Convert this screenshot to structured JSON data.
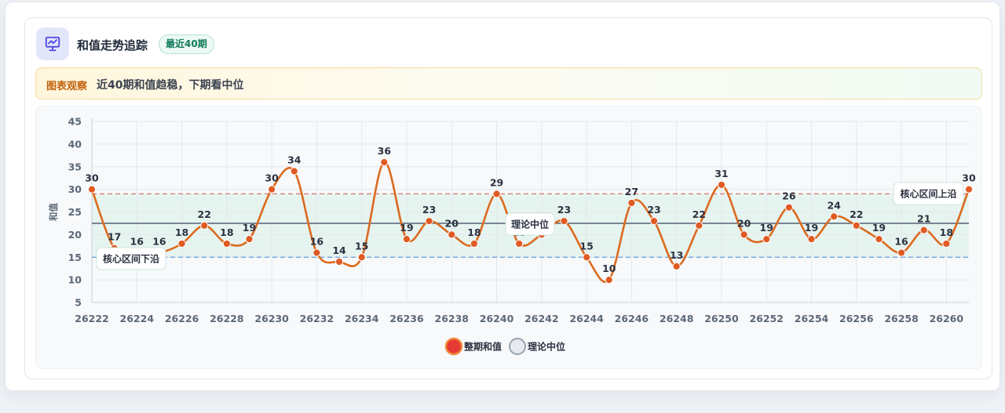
{
  "header": {
    "title": "和值走势追踪",
    "badge": "最近40期",
    "icon": "presentation-chart-icon"
  },
  "observation": {
    "tag": "图表观察",
    "text": "近40期和值趋稳，下期看中位"
  },
  "colors": {
    "line": "#dc6a1f",
    "point": "#e05a24",
    "median": "#5d6b7e",
    "upper": "#e0504f",
    "lower": "#4a86d4",
    "band": "#e6f4ef",
    "accent": "#4f46e5"
  },
  "chart_data": {
    "type": "line",
    "ylabel": "和值",
    "ylim": [
      5,
      45
    ],
    "yticks": [
      5,
      10,
      15,
      20,
      25,
      30,
      35,
      40,
      45
    ],
    "grid": true,
    "legend_position": "bottom-center",
    "x": [
      26222,
      26223,
      26224,
      26225,
      26226,
      26227,
      26228,
      26229,
      26230,
      26231,
      26232,
      26233,
      26234,
      26235,
      26236,
      26237,
      26238,
      26239,
      26240,
      26241,
      26242,
      26243,
      26244,
      26245,
      26246,
      26247,
      26248,
      26249,
      26250,
      26251,
      26252,
      26253,
      26254,
      26255,
      26256,
      26257,
      26258,
      26259,
      26260,
      26261
    ],
    "xtick_labels": [
      "26222",
      "26224",
      "26226",
      "26228",
      "26230",
      "26232",
      "26234",
      "26236",
      "26238",
      "26240",
      "26242",
      "26244",
      "26246",
      "26248",
      "26250",
      "26252",
      "26254",
      "26256",
      "26258",
      "26260"
    ],
    "series": [
      {
        "name": "整期和值",
        "values": [
          30,
          17,
          16,
          16,
          18,
          22,
          18,
          19,
          30,
          34,
          16,
          14,
          15,
          36,
          19,
          23,
          20,
          18,
          29,
          18,
          20,
          23,
          15,
          10,
          27,
          23,
          13,
          22,
          31,
          20,
          19,
          26,
          19,
          24,
          22,
          19,
          16,
          21,
          18,
          30
        ]
      }
    ],
    "reference_lines": {
      "median": {
        "label": "理论中位",
        "value": 22.5
      },
      "upper": {
        "label": "核心区间上沿",
        "value": 29
      },
      "lower": {
        "label": "核心区间下沿",
        "value": 15
      }
    },
    "legend": [
      "整期和值",
      "理论中位"
    ]
  }
}
